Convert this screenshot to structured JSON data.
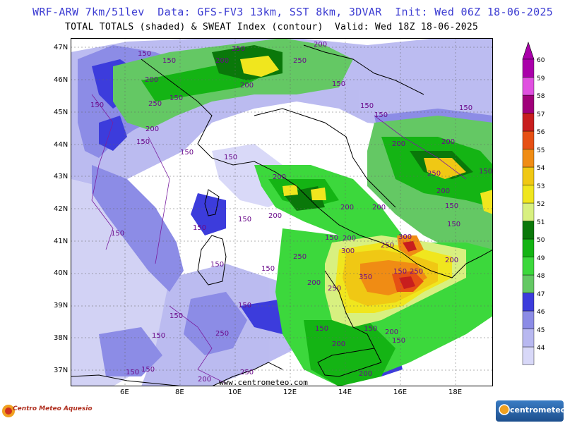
{
  "header": {
    "line1": "WRF-ARW 7km/51lev  Data: GFS-FV3 13km, SST 8km, 3DVAR  Init: Wed 06Z 18-06-2025",
    "line2": "TOTAL TOTALS (shaded) & SWEAT Index (contour)  Valid: Wed 18Z 18-06-2025"
  },
  "axes": {
    "latitudes": [
      "47N",
      "46N",
      "45N",
      "44N",
      "43N",
      "42N",
      "41N",
      "40N",
      "39N",
      "38N",
      "37N"
    ],
    "longitudes": [
      "6E",
      "8E",
      "10E",
      "12E",
      "14E",
      "16E",
      "18E"
    ]
  },
  "colorbar": {
    "levels": [
      "44",
      "45",
      "46",
      "47",
      "48",
      "49",
      "50",
      "51",
      "52",
      "53",
      "54",
      "55",
      "56",
      "57",
      "58",
      "59",
      "60"
    ],
    "colors": [
      "#d8d8f8",
      "#b8b8f0",
      "#8c8ce6",
      "#3c3cdc",
      "#64c864",
      "#3cd83c",
      "#14b414",
      "#0a780a",
      "#d8f080",
      "#f0e61e",
      "#f0c814",
      "#f08c14",
      "#e65014",
      "#c81e1e",
      "#a0007a",
      "#e050e0",
      "#aa00aa"
    ]
  },
  "contour_labels": [
    "150",
    "200",
    "250",
    "300",
    "350"
  ],
  "watermark": "www.centrometeo.com",
  "logos": {
    "left": "Centro Meteo Aquesio",
    "right": "centrometeo"
  }
}
